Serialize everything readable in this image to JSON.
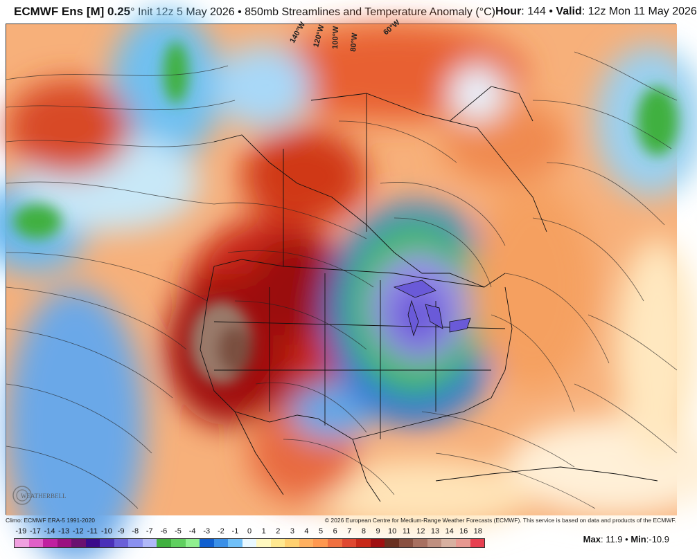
{
  "header": {
    "model": "ECMWF Ens [M] 0.25",
    "degree": "°",
    "init": "Init 12z 5 May 2026",
    "bullet": "•",
    "product": "850mb Streamlines and Temperature Anomaly (°C)",
    "hour_label": "Hour",
    "hour_value": "144",
    "valid_label": "Valid",
    "valid_value": "12z Mon 11 May 2026"
  },
  "map": {
    "region": "North America",
    "meridian_labels": [
      "140°W",
      "120°W",
      "100°W",
      "80°W",
      "60°W"
    ],
    "logo_text": "WEATHERBELL"
  },
  "credits": {
    "left": "Climo: ECMWF ERA-5 1991-2020",
    "right": "© 2026 European Centre for Medium-Range Weather Forecasts (ECMWF). This service is based on data and products of the ECMWF."
  },
  "legend": {
    "labels": [
      "-19",
      "-17",
      "-14",
      "-13",
      "-12",
      "-11",
      "-10",
      "-9",
      "-8",
      "-7",
      "-6",
      "-5",
      "-4",
      "-3",
      "-2",
      "-1",
      "0",
      "1",
      "2",
      "3",
      "4",
      "5",
      "6",
      "7",
      "8",
      "9",
      "10",
      "11",
      "12",
      "13",
      "14",
      "16",
      "18"
    ],
    "colors": [
      "#f0a0e0",
      "#e060c8",
      "#c020a0",
      "#9a1080",
      "#6a1070",
      "#3a0a8a",
      "#4a30b8",
      "#6a60d8",
      "#8a90f0",
      "#b0b8f8",
      "#40b040",
      "#60d060",
      "#90f090",
      "#1060d0",
      "#3a90e8",
      "#70c0f8",
      "#e8f8ff",
      "#fff8c0",
      "#ffe890",
      "#ffd070",
      "#ffb060",
      "#ff9850",
      "#f07040",
      "#e04830",
      "#c82818",
      "#a01010",
      "#6a3020",
      "#8a5040",
      "#a87060",
      "#c09080",
      "#d8b0a0",
      "#e89890",
      "#e84050"
    ]
  },
  "extremes": {
    "max_label": "Max",
    "max_value": "11.9",
    "min_label": "Min",
    "min_value": "-10.9"
  }
}
